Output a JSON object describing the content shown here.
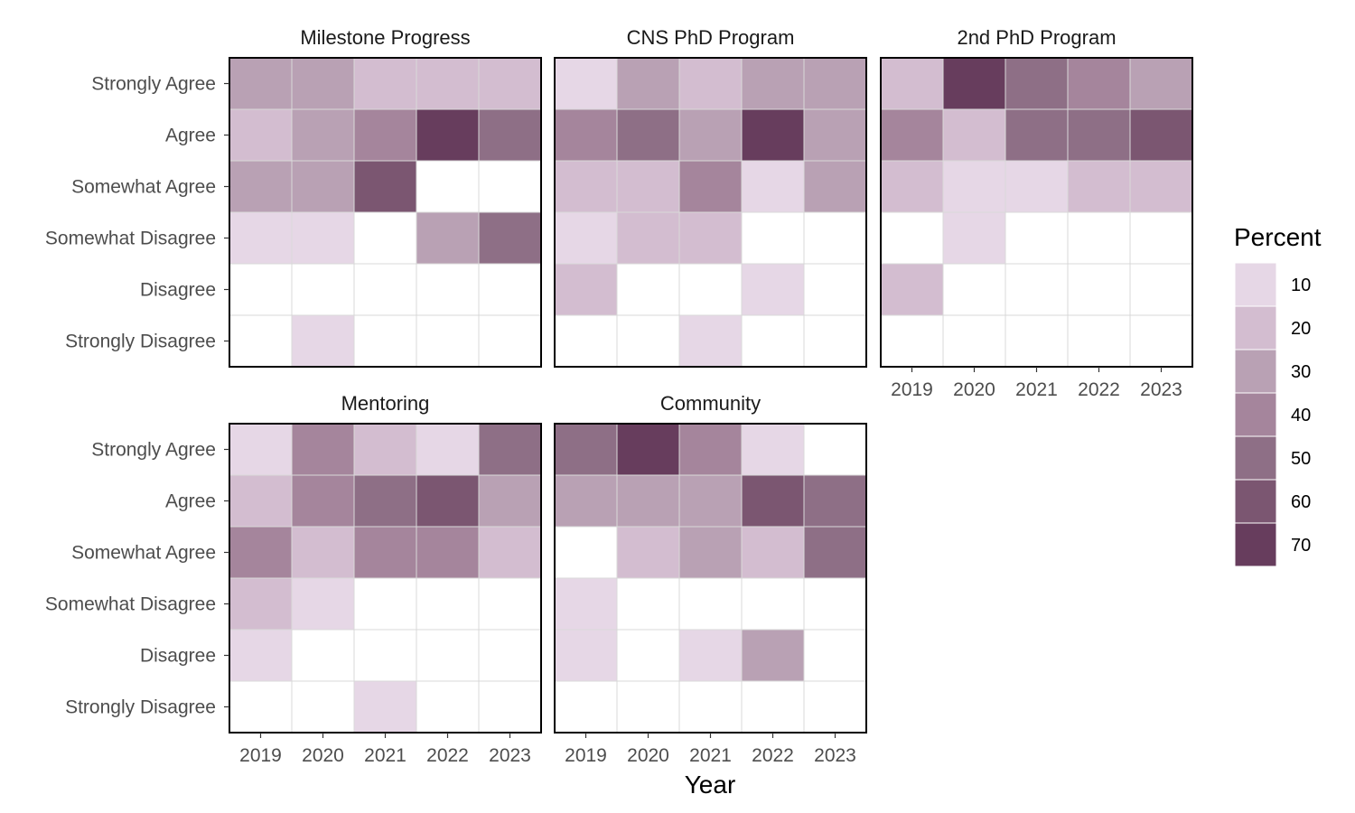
{
  "chart_data": {
    "type": "heatmap",
    "xlabel": "Year",
    "x": [
      "2019",
      "2020",
      "2021",
      "2022",
      "2023"
    ],
    "y": [
      "Strongly Agree",
      "Agree",
      "Somewhat Agree",
      "Somewhat Disagree",
      "Disagree",
      "Strongly Disagree"
    ],
    "legend": {
      "title": "Percent",
      "breaks": [
        10,
        20,
        30,
        40,
        50,
        60,
        70
      ],
      "colors": [
        "#e6d7e6",
        "#d3bdd0",
        "#b9a1b4",
        "#a5859c",
        "#8e6f86",
        "#7b5671",
        "#673d5d"
      ],
      "placement": "right"
    },
    "empty_color": "#ffffff",
    "grid_color": "#d9d9d9",
    "facets": [
      {
        "title": "Milestone Progress",
        "values": [
          [
            30,
            30,
            20,
            20,
            20
          ],
          [
            20,
            30,
            40,
            70,
            50
          ],
          [
            30,
            30,
            60,
            null,
            null
          ],
          [
            10,
            10,
            null,
            30,
            50
          ],
          [
            null,
            null,
            null,
            null,
            null
          ],
          [
            null,
            10,
            null,
            null,
            null
          ]
        ]
      },
      {
        "title": "CNS PhD Program",
        "values": [
          [
            10,
            30,
            20,
            30,
            30
          ],
          [
            40,
            50,
            30,
            70,
            30
          ],
          [
            20,
            20,
            40,
            10,
            30
          ],
          [
            10,
            20,
            20,
            null,
            null
          ],
          [
            20,
            null,
            null,
            10,
            null
          ],
          [
            null,
            null,
            10,
            null,
            null
          ]
        ]
      },
      {
        "title": "2nd PhD Program",
        "values": [
          [
            20,
            70,
            50,
            40,
            30
          ],
          [
            40,
            20,
            50,
            50,
            60
          ],
          [
            20,
            10,
            10,
            20,
            20
          ],
          [
            null,
            10,
            null,
            null,
            null
          ],
          [
            20,
            null,
            null,
            null,
            null
          ],
          [
            null,
            null,
            null,
            null,
            null
          ]
        ]
      },
      {
        "title": "Mentoring",
        "values": [
          [
            10,
            40,
            20,
            10,
            50
          ],
          [
            20,
            40,
            50,
            60,
            30
          ],
          [
            40,
            20,
            40,
            40,
            20
          ],
          [
            20,
            10,
            null,
            null,
            null
          ],
          [
            10,
            null,
            null,
            null,
            null
          ],
          [
            null,
            null,
            10,
            null,
            null
          ]
        ]
      },
      {
        "title": "Community",
        "values": [
          [
            50,
            70,
            40,
            10,
            null
          ],
          [
            30,
            30,
            30,
            60,
            50
          ],
          [
            null,
            20,
            30,
            20,
            50
          ],
          [
            10,
            null,
            null,
            null,
            null
          ],
          [
            10,
            null,
            10,
            30,
            null
          ],
          [
            null,
            null,
            null,
            null,
            null
          ]
        ]
      }
    ]
  }
}
